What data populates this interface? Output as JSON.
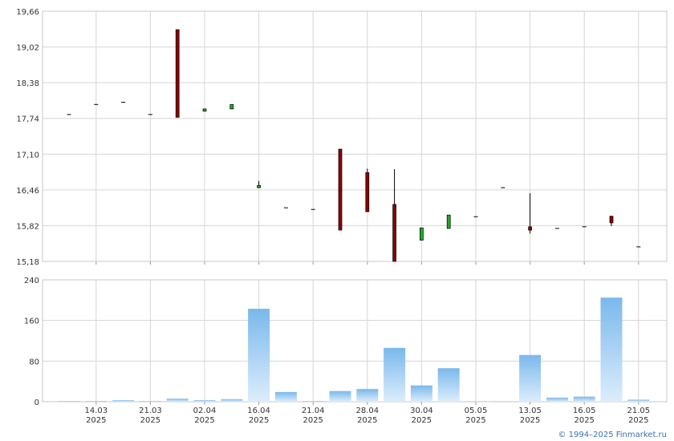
{
  "chart_data": {
    "type": "candlestick",
    "categories": [
      null,
      "14.03\n2025",
      null,
      "21.03\n2025",
      null,
      "02.04\n2025",
      null,
      "16.04\n2025",
      null,
      "21.04\n2025",
      null,
      "28.04\n2025",
      null,
      "30.04\n2025",
      null,
      "05.05\n2025",
      null,
      "13.05\n2025",
      null,
      "16.05\n2025",
      null,
      "21.05\n2025"
    ],
    "open": [
      17.81,
      17.99,
      18.03,
      17.81,
      19.33,
      17.87,
      17.91,
      16.5,
      16.14,
      16.11,
      17.19,
      16.77,
      16.2,
      15.56,
      15.77,
      15.98,
      16.5,
      15.8,
      15.77,
      15.8,
      15.99,
      15.44
    ],
    "high": [
      17.81,
      17.99,
      18.03,
      17.81,
      19.33,
      17.91,
      17.99,
      16.62,
      16.14,
      16.11,
      17.19,
      16.84,
      16.83,
      15.78,
      16.01,
      15.98,
      16.5,
      16.4,
      15.77,
      15.8,
      15.99,
      15.44
    ],
    "low": [
      17.81,
      17.99,
      18.03,
      17.81,
      17.76,
      17.87,
      17.91,
      16.5,
      16.14,
      16.11,
      15.74,
      16.07,
      15.18,
      15.56,
      15.77,
      15.98,
      16.5,
      15.68,
      15.77,
      15.8,
      15.81,
      15.44
    ],
    "close": [
      17.81,
      17.99,
      18.03,
      17.81,
      17.76,
      17.91,
      17.99,
      16.54,
      16.14,
      16.11,
      15.74,
      16.07,
      15.18,
      15.78,
      16.01,
      15.98,
      16.5,
      15.74,
      15.77,
      15.8,
      15.87,
      15.44
    ],
    "volume": [
      1.6,
      1.5,
      3,
      1.5,
      6,
      3,
      5,
      183,
      19,
      1.5,
      21,
      25,
      106,
      32,
      66,
      1,
      1,
      92,
      8,
      10,
      205,
      4
    ],
    "up_color": "#22aa22",
    "down_color": "#8b0000",
    "volume_color": "#7ab8ec",
    "ylim": [
      15.18,
      19.66
    ],
    "yticks": [
      {
        "value": 15.18,
        "label": "15,18"
      },
      {
        "value": 15.82,
        "label": "15,82"
      },
      {
        "value": 16.46,
        "label": "16,46"
      },
      {
        "value": 17.1,
        "label": "17,10"
      },
      {
        "value": 17.74,
        "label": "17,74"
      },
      {
        "value": 18.38,
        "label": "18,38"
      },
      {
        "value": 19.02,
        "label": "19,02"
      },
      {
        "value": 19.66,
        "label": "19,66"
      }
    ],
    "y2lim": [
      0,
      240
    ],
    "y2ticks": [
      0,
      80,
      160,
      240
    ],
    "grid": true,
    "footer": "© 1994–2025 Finmarket.ru"
  }
}
